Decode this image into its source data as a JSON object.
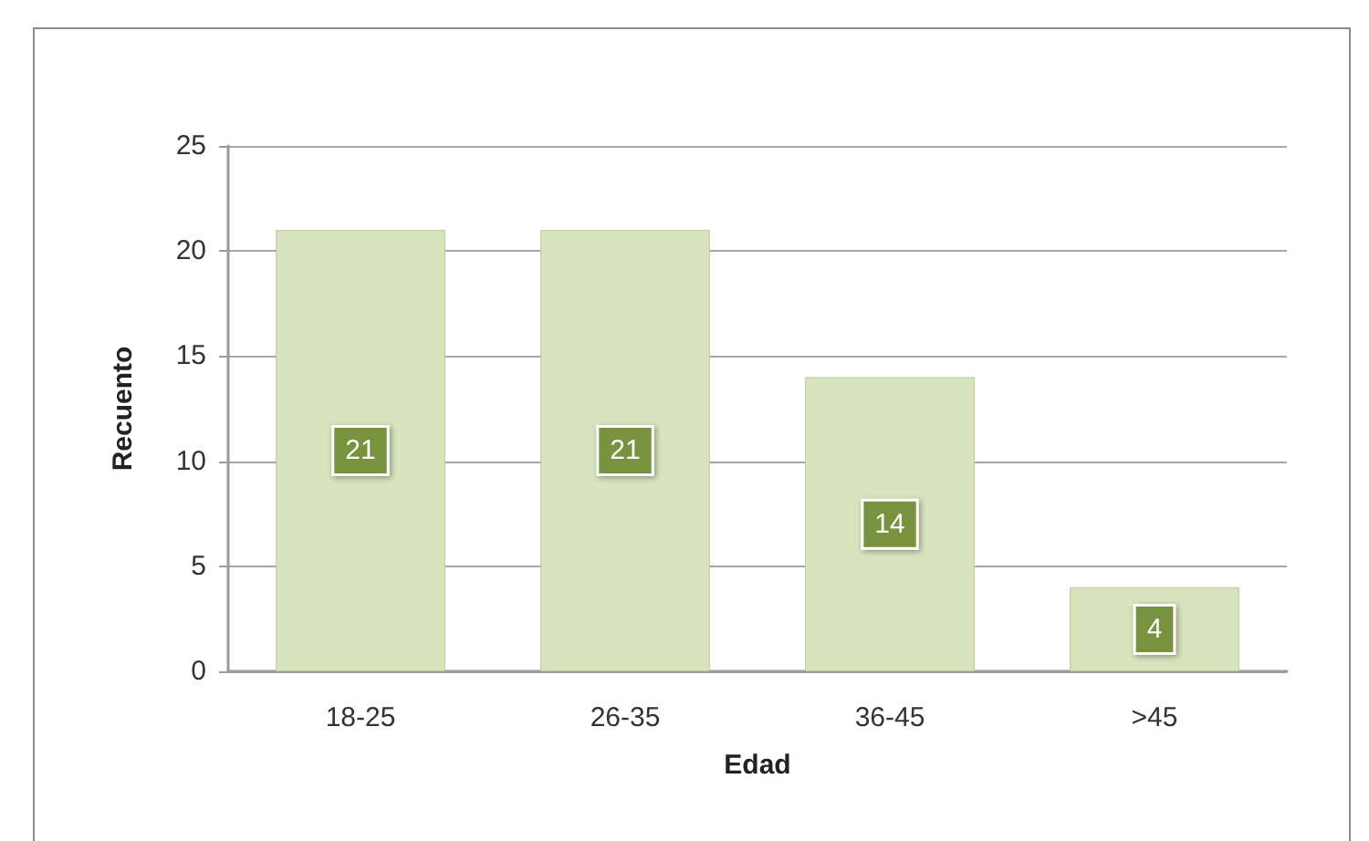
{
  "chart_data": {
    "type": "bar",
    "xlabel": "Edad",
    "ylabel": "Recuento",
    "categories": [
      "18-25",
      "26-35",
      "36-45",
      ">45"
    ],
    "values": [
      21,
      21,
      14,
      4
    ],
    "color": "#d7e4bd",
    "ylim": [
      0,
      25
    ],
    "yticks": [
      0,
      5,
      10,
      15,
      20,
      25
    ],
    "grid": "y",
    "data_labels": true
  }
}
